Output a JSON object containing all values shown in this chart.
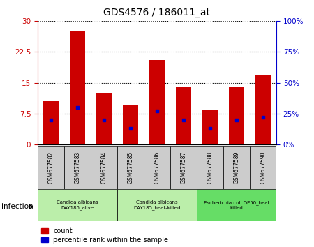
{
  "title": "GDS4576 / 186011_at",
  "samples": [
    "GSM677582",
    "GSM677583",
    "GSM677584",
    "GSM677585",
    "GSM677586",
    "GSM677587",
    "GSM677588",
    "GSM677589",
    "GSM677590"
  ],
  "counts": [
    10.5,
    27.5,
    12.5,
    9.5,
    20.5,
    14.0,
    8.5,
    14.0,
    17.0
  ],
  "percentile_ranks": [
    20,
    30,
    20,
    13,
    27,
    20,
    13,
    20,
    22
  ],
  "ylim_left": [
    0,
    30
  ],
  "ylim_right": [
    0,
    100
  ],
  "yticks_left": [
    0,
    7.5,
    15,
    22.5,
    30
  ],
  "yticks_right": [
    0,
    25,
    50,
    75,
    100
  ],
  "groups": [
    {
      "label": "Candida albicans\nDAY185_alive",
      "start": 0,
      "end": 3,
      "color": "#bbeeaa"
    },
    {
      "label": "Candida albicans\nDAY185_heat-killed",
      "start": 3,
      "end": 6,
      "color": "#bbeeaa"
    },
    {
      "label": "Escherichia coli OP50_heat\nkilled",
      "start": 6,
      "end": 9,
      "color": "#66dd66"
    }
  ],
  "bar_color": "#cc0000",
  "dot_color": "#0000cc",
  "grid_color": "#000000",
  "bg_color": "#ffffff",
  "tick_bg_color": "#cccccc",
  "left_axis_color": "#cc0000",
  "right_axis_color": "#0000cc",
  "infection_label": "infection",
  "legend_count": "count",
  "legend_pct": "percentile rank within the sample"
}
